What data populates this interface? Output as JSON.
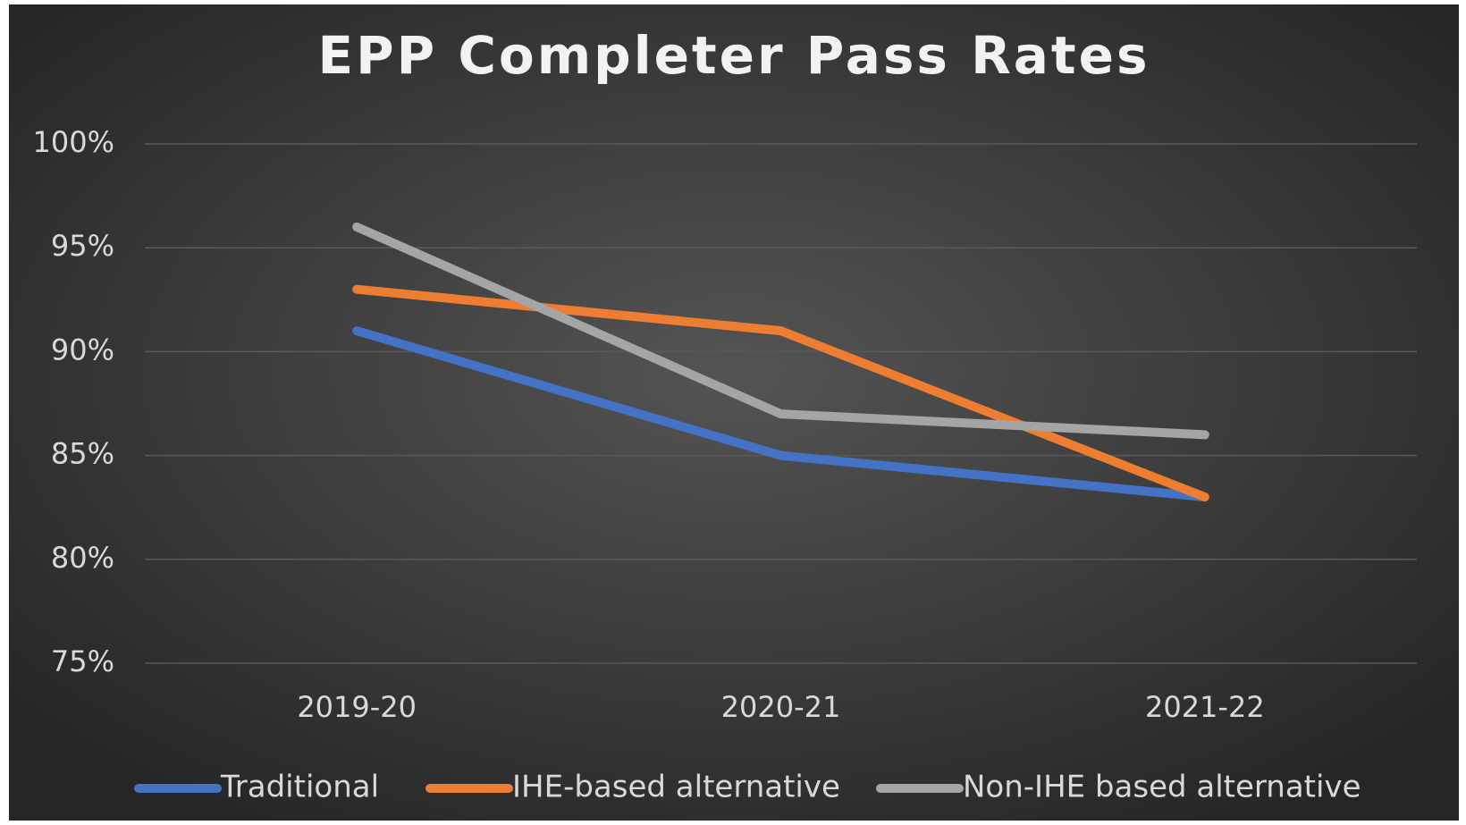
{
  "chart_data": {
    "type": "line",
    "title": "EPP Completer Pass Rates",
    "categories": [
      "2019-20",
      "2020-21",
      "2021-22"
    ],
    "series": [
      {
        "name": "Traditional",
        "color": "#4472c4",
        "values": [
          91,
          85,
          83
        ]
      },
      {
        "name": "IHE-based alternative",
        "color": "#ed7d31",
        "values": [
          93,
          91,
          83
        ]
      },
      {
        "name": "Non-IHE based alternative",
        "color": "#a5a5a5",
        "values": [
          96,
          87,
          86
        ]
      }
    ],
    "ylim": [
      75,
      100
    ],
    "yticks": [
      {
        "value": 75,
        "label": "75%"
      },
      {
        "value": 80,
        "label": "80%"
      },
      {
        "value": 85,
        "label": "85%"
      },
      {
        "value": 90,
        "label": "90%"
      },
      {
        "value": 95,
        "label": "95%"
      },
      {
        "value": 100,
        "label": "100%"
      }
    ],
    "grid": true,
    "legend": "bottom"
  }
}
